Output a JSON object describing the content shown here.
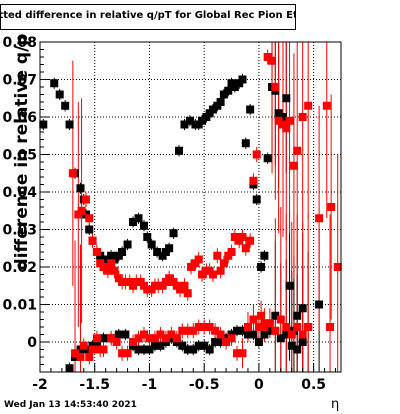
{
  "title": "itted difference in relative q/pT  for Global Rec Pion EtapT",
  "ylabel": "difference in relative q/p",
  "xlabel": "η",
  "timestamp": "Wed Jan 13 14:53:40 2021",
  "colors": {
    "series_black": "#000000",
    "series_red": "#ff0000",
    "grid": "#000000"
  },
  "chart_data": {
    "type": "scatter",
    "title": "itted difference in relative q/pT  for Global Rec Pion EtapT",
    "xlabel": "η",
    "ylabel": "difference in relative q/p",
    "xlim": [
      -2.0,
      0.75
    ],
    "ylim": [
      -0.008,
      0.08
    ],
    "xticks": [
      -2,
      -1.5,
      -1,
      -0.5,
      0,
      0.5
    ],
    "xtick_labels": [
      "-2",
      "-1.5",
      "-1",
      "-0.5",
      "0",
      "0.5"
    ],
    "yticks": [
      0,
      0.01,
      0.02,
      0.03,
      0.04,
      0.05,
      0.06,
      0.07,
      0.08
    ],
    "ytick_labels": [
      "0",
      "0.01",
      "0.02",
      "0.03",
      "0.04",
      "0.05",
      "0.06",
      "0.07",
      "0.08"
    ],
    "grid": true,
    "series": [
      {
        "color": "#000000",
        "x": [
          -1.97,
          -1.87,
          -1.82,
          -1.77,
          -1.73,
          -1.68,
          -1.63,
          -1.6,
          -1.58,
          -1.55,
          -1.52,
          -1.48,
          -1.45,
          -1.42,
          -1.38,
          -1.35,
          -1.32,
          -1.28,
          -1.25,
          -1.2,
          -1.15,
          -1.1,
          -1.05,
          -1.02,
          -0.98,
          -0.93,
          -0.88,
          -0.85,
          -0.82,
          -0.78,
          -0.73,
          -0.68,
          -0.63,
          -0.58,
          -0.55,
          -0.52,
          -0.48,
          -0.45,
          -0.42,
          -0.38,
          -0.35,
          -0.32,
          -0.28,
          -0.25,
          -0.22,
          -0.18,
          -0.15,
          -0.12,
          -0.08,
          -0.05,
          -0.02,
          0.02,
          0.05,
          0.08,
          0.12,
          0.15,
          0.18,
          0.22,
          0.25,
          0.28,
          0.32,
          0.35,
          0.4,
          0.45,
          0.55,
          -1.73,
          -1.68,
          -1.63,
          -1.58,
          -1.52,
          -1.48,
          -1.42,
          -1.35,
          -1.28,
          -1.22,
          -1.15,
          -1.1,
          -1.05,
          -1.0,
          -0.95,
          -0.9,
          -0.85,
          -0.8,
          -0.75,
          -0.7,
          -0.65,
          -0.6,
          -0.55,
          -0.5,
          -0.45,
          -0.4,
          -0.35,
          -0.3,
          -0.25,
          -0.2,
          -0.15,
          -0.1,
          -0.05,
          0.0,
          0.05,
          0.1,
          0.15,
          0.2,
          0.25,
          0.3,
          0.35,
          0.4
        ],
        "y": [
          0.058,
          0.069,
          0.066,
          0.063,
          0.058,
          0.045,
          0.041,
          0.038,
          0.034,
          0.03,
          0.027,
          0.024,
          0.023,
          0.022,
          0.022,
          0.023,
          0.022,
          0.023,
          0.024,
          0.026,
          0.032,
          0.033,
          0.031,
          0.028,
          0.026,
          0.024,
          0.023,
          0.024,
          0.025,
          0.029,
          0.051,
          0.058,
          0.059,
          0.058,
          0.058,
          0.059,
          0.06,
          0.061,
          0.062,
          0.063,
          0.064,
          0.066,
          0.067,
          0.069,
          0.068,
          0.069,
          0.07,
          0.053,
          0.062,
          0.042,
          0.038,
          0.02,
          0.023,
          0.049,
          0.068,
          0.067,
          0.061,
          0.06,
          0.065,
          0.015,
          0.003,
          0.007,
          0.009,
          0.004,
          0.01,
          -0.007,
          -0.004,
          -0.002,
          -0.002,
          -0.001,
          0.0,
          0.001,
          0.001,
          0.002,
          0.002,
          -0.001,
          -0.002,
          -0.002,
          -0.002,
          -0.001,
          -0.001,
          0.0,
          0.001,
          0.0,
          -0.001,
          -0.002,
          -0.002,
          -0.001,
          -0.001,
          -0.002,
          0.0,
          0.0,
          0.001,
          0.002,
          0.003,
          0.003,
          0.002,
          0.002,
          0.0,
          0.002,
          0.003,
          0.007,
          0.001,
          0.002,
          -0.001,
          -0.002,
          0.0
        ]
      },
      {
        "color": "#ff0000",
        "x": [
          -1.7,
          -1.65,
          -1.62,
          -1.58,
          -1.55,
          -1.52,
          -1.48,
          -1.45,
          -1.42,
          -1.38,
          -1.35,
          -1.32,
          -1.28,
          -1.25,
          -1.22,
          -1.18,
          -1.15,
          -1.12,
          -1.08,
          -1.05,
          -1.02,
          -0.98,
          -0.95,
          -0.92,
          -0.88,
          -0.85,
          -0.82,
          -0.78,
          -0.75,
          -0.72,
          -0.68,
          -0.65,
          -0.62,
          -0.58,
          -0.55,
          -0.52,
          -0.48,
          -0.45,
          -0.42,
          -0.38,
          -0.35,
          -0.32,
          -0.28,
          -0.25,
          -0.22,
          -0.18,
          -0.15,
          -0.12,
          -0.08,
          -0.05,
          -0.02,
          0.02,
          0.05,
          0.08,
          0.12,
          0.15,
          0.18,
          0.22,
          0.25,
          0.28,
          0.32,
          0.35,
          0.4,
          0.45,
          0.55,
          0.62,
          0.66,
          0.72,
          -1.68,
          -1.63,
          -1.6,
          -1.55,
          -1.52,
          -1.48,
          -1.45,
          -1.42,
          -1.35,
          -1.3,
          -1.25,
          -1.2,
          -1.15,
          -1.1,
          -1.05,
          -1.0,
          -0.95,
          -0.9,
          -0.85,
          -0.8,
          -0.75,
          -0.7,
          -0.65,
          -0.6,
          -0.55,
          -0.5,
          -0.45,
          -0.4,
          -0.35,
          -0.3,
          -0.25,
          -0.2,
          -0.15,
          -0.1,
          -0.05,
          0.0,
          0.05,
          0.1,
          0.15,
          0.2,
          0.25,
          0.3,
          0.35,
          0.4,
          0.45,
          0.65
        ],
        "y": [
          0.045,
          0.034,
          0.035,
          0.038,
          0.033,
          0.027,
          0.024,
          0.021,
          0.02,
          0.019,
          0.021,
          0.019,
          0.017,
          0.016,
          0.016,
          0.016,
          0.015,
          0.016,
          0.016,
          0.015,
          0.014,
          0.014,
          0.015,
          0.015,
          0.015,
          0.016,
          0.017,
          0.016,
          0.015,
          0.014,
          0.015,
          0.013,
          0.02,
          0.021,
          0.022,
          0.018,
          0.019,
          0.019,
          0.018,
          0.023,
          0.019,
          0.021,
          0.023,
          0.024,
          0.028,
          0.027,
          0.028,
          0.025,
          0.027,
          0.043,
          0.05,
          0.007,
          0.005,
          0.076,
          0.075,
          0.068,
          0.059,
          0.058,
          0.057,
          0.059,
          0.047,
          0.051,
          0.06,
          0.063,
          0.033,
          0.063,
          0.036,
          0.02,
          -0.003,
          -0.004,
          -0.001,
          -0.004,
          -0.002,
          0.001,
          -0.002,
          -0.002,
          0.001,
          0.0,
          -0.003,
          -0.003,
          0.0,
          0.001,
          0.002,
          0.001,
          0.001,
          0.002,
          0.001,
          0.002,
          0.001,
          0.003,
          0.003,
          0.003,
          0.004,
          0.004,
          0.004,
          0.003,
          0.002,
          0.0,
          0.001,
          -0.003,
          -0.003,
          0.004,
          0.006,
          0.004,
          0.004,
          0.005,
          0.003,
          0.006,
          0.004,
          0.002,
          0.004,
          0.002,
          0.004,
          0.004
        ]
      }
    ]
  }
}
